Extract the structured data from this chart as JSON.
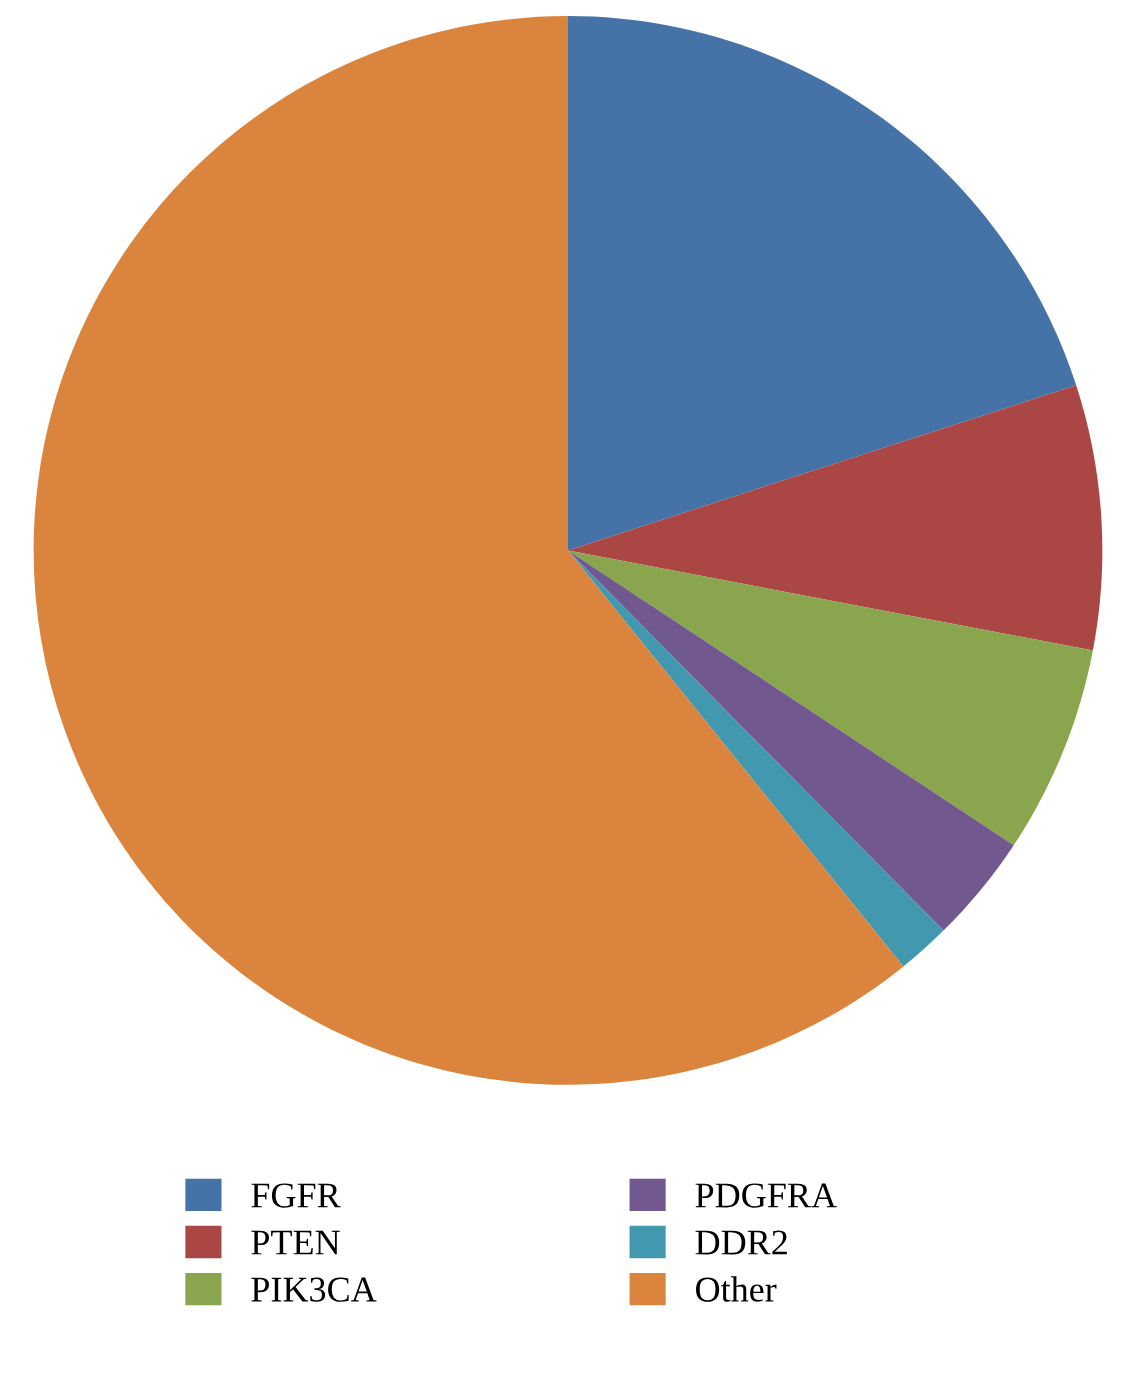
{
  "chart_data": {
    "type": "pie",
    "categories": [
      "FGFR",
      "PTEN",
      "PIK3CA",
      "PDGFRA",
      "DDR2",
      "Other"
    ],
    "values": [
      20,
      8,
      6.3,
      3.3,
      1.6,
      60.8
    ],
    "colors": [
      "#4572a7",
      "#aa4643",
      "#89a54e",
      "#71588f",
      "#4198af",
      "#db843d"
    ],
    "legend": "bottom"
  }
}
